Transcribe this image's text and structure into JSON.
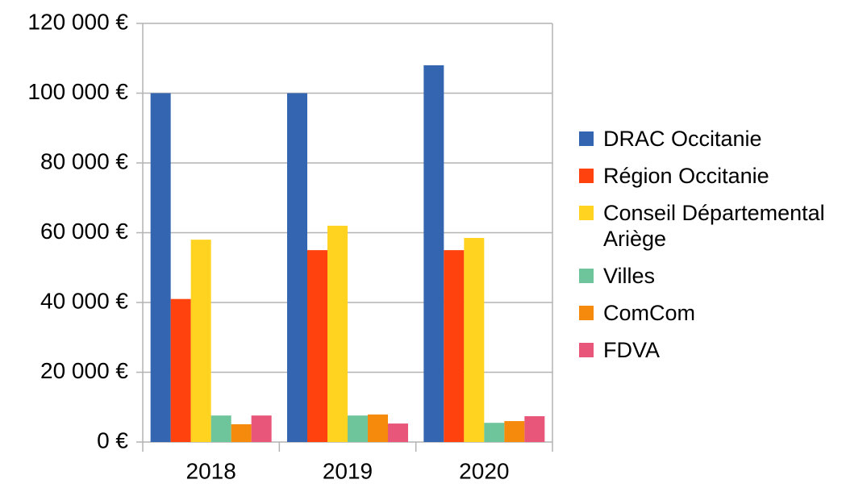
{
  "chart_data": {
    "type": "bar",
    "categories": [
      "2018",
      "2019",
      "2020"
    ],
    "series": [
      {
        "name": "DRAC Occitanie",
        "color": "#3465b0",
        "values": [
          100000,
          100000,
          108000
        ]
      },
      {
        "name": "Région Occitanie",
        "color": "#ff420e",
        "values": [
          41000,
          55000,
          55000
        ]
      },
      {
        "name": "Conseil Départemental Ariège",
        "color": "#ffd320",
        "values": [
          58000,
          62000,
          58500
        ]
      },
      {
        "name": "Villes",
        "color": "#6fc59b",
        "values": [
          7600,
          7600,
          5500
        ]
      },
      {
        "name": "ComCom",
        "color": "#f58a0c",
        "values": [
          5100,
          7900,
          6000
        ]
      },
      {
        "name": "FDVA",
        "color": "#e8567a",
        "values": [
          7600,
          5300,
          7400
        ]
      }
    ],
    "ylim": [
      0,
      120000
    ],
    "yticks": [
      {
        "value": 0,
        "label": "0 €"
      },
      {
        "value": 20000,
        "label": "20 000 €"
      },
      {
        "value": 40000,
        "label": "40 000 €"
      },
      {
        "value": 60000,
        "label": "60 000 €"
      },
      {
        "value": 80000,
        "label": "80 000 €"
      },
      {
        "value": 100000,
        "label": "100 000 €"
      },
      {
        "value": 120000,
        "label": "120 000 €"
      }
    ],
    "grid": true,
    "legend": "right"
  }
}
